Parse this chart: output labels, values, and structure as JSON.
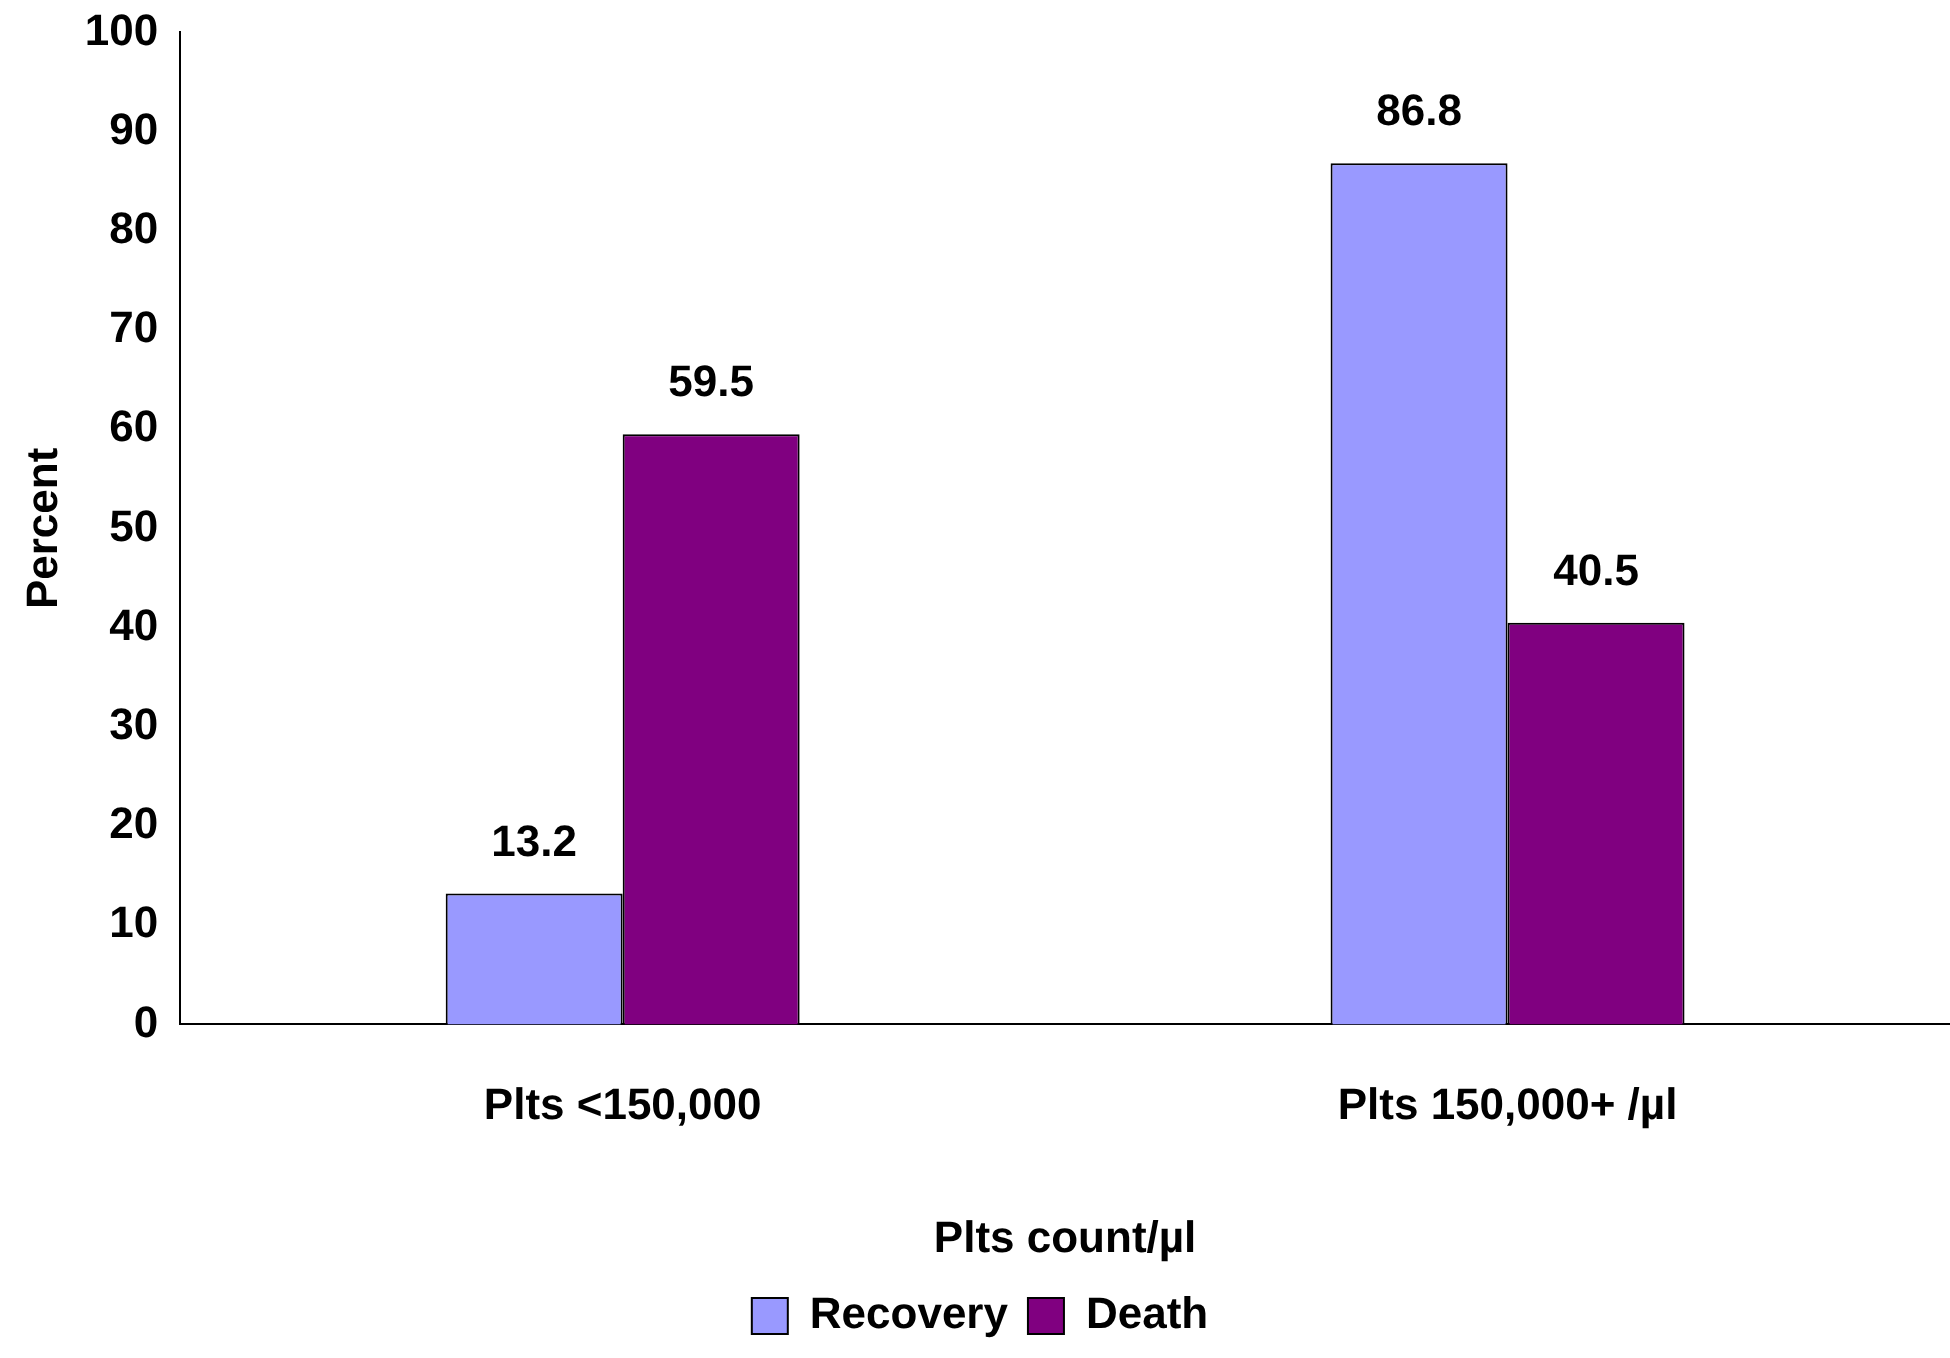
{
  "chart_data": {
    "type": "bar",
    "xlabel": "Plts count/µl",
    "ylabel": "Percent",
    "categories": [
      "Plts <150,000",
      "Plts 150,000+ /µl"
    ],
    "series": [
      {
        "name": "Recovery",
        "color": "#9999ff",
        "values": [
          13.2,
          86.8
        ]
      },
      {
        "name": "Death",
        "color": "#800080",
        "values": [
          59.5,
          40.5
        ]
      }
    ],
    "ylim": [
      0,
      100
    ],
    "yticks": [
      0,
      10,
      20,
      30,
      40,
      50,
      60,
      70,
      80,
      90,
      100
    ],
    "grid": false,
    "legend": "bottom",
    "data_labels": true
  }
}
